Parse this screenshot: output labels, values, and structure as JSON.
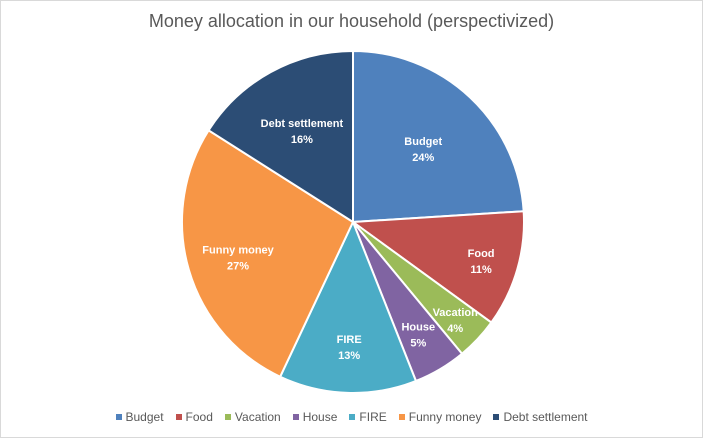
{
  "chart_data": {
    "type": "pie",
    "title": "Money allocation in our household (perspectivized)",
    "categories": [
      "Budget",
      "Food",
      "Vacation",
      "House",
      "FIRE",
      "Funny money",
      "Debt settlement"
    ],
    "values": [
      24,
      11,
      4,
      5,
      13,
      27,
      16
    ],
    "labels": [
      "24%",
      "11%",
      "4%",
      "5%",
      "13%",
      "27%",
      "16%"
    ],
    "colors": [
      "#4f81bd",
      "#c0504d",
      "#9bbb59",
      "#8064a2",
      "#4bacc6",
      "#f79646",
      "#2c4d75"
    ],
    "legend_position": "bottom",
    "start_angle": "12 o'clock, clockwise"
  }
}
